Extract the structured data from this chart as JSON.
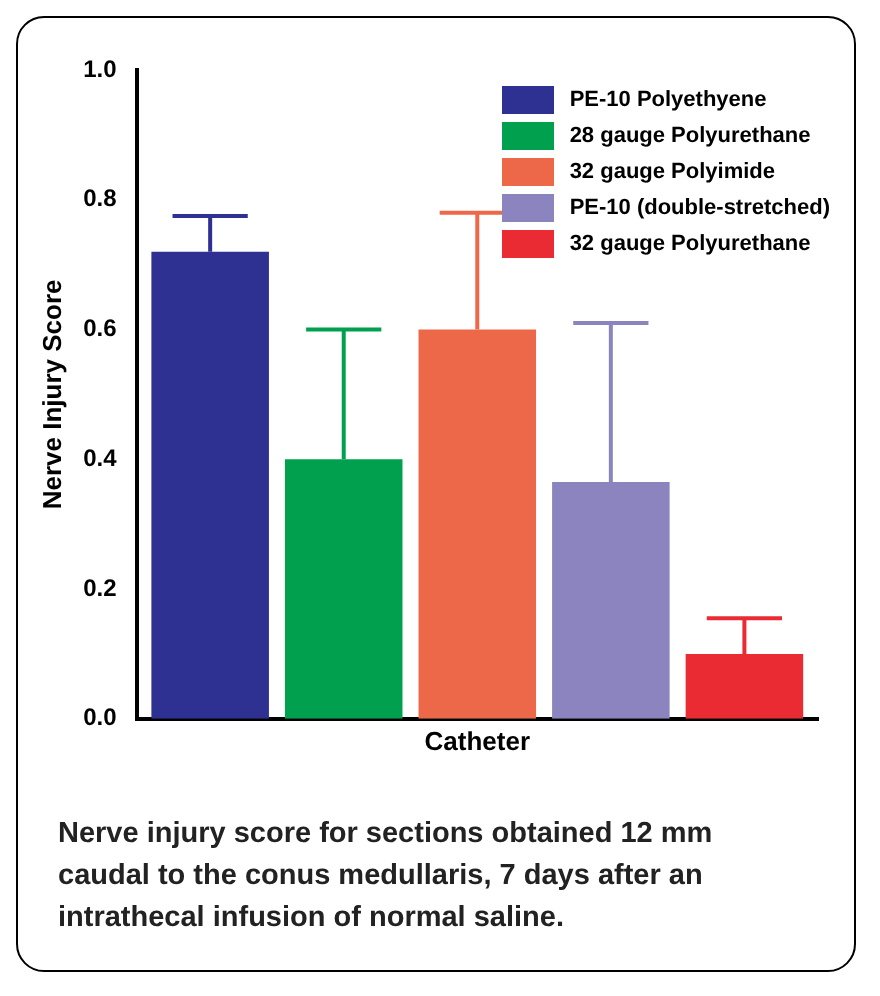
{
  "chart_data": {
    "type": "bar",
    "ylabel": "Nerve Injury Score",
    "xlabel": "Catheter",
    "categories": [
      null
    ],
    "series": [
      {
        "name": "PE-10 Polyethyene",
        "color": "#2e3191",
        "values": [
          0.72
        ],
        "errors": [
          [
            0.72,
            0.775
          ]
        ]
      },
      {
        "name": "28 gauge Polyurethane",
        "color": "#00a04f",
        "values": [
          0.4
        ],
        "errors": [
          [
            0.4,
            0.6
          ]
        ]
      },
      {
        "name": "32 gauge Polyimide",
        "color": "#ec6849",
        "values": [
          0.6
        ],
        "errors": [
          [
            0.6,
            0.78
          ]
        ]
      },
      {
        "name": "PE-10 (double-stretched)",
        "color": "#8b84bf",
        "values": [
          0.365
        ],
        "errors": [
          [
            0.365,
            0.61
          ]
        ]
      },
      {
        "name": "32 gauge Polyurethane",
        "color": "#ea2b34",
        "values": [
          0.1
        ],
        "errors": [
          [
            0.1,
            0.155
          ]
        ]
      }
    ],
    "ylim": [
      0,
      1
    ],
    "yticks": [
      {
        "value": 0,
        "label": "0.0"
      },
      {
        "value": 0.2,
        "label": "0.2"
      },
      {
        "value": 0.4,
        "label": "0.4"
      },
      {
        "value": 0.6,
        "label": "0.6"
      },
      {
        "value": 0.8,
        "label": "0.8"
      },
      {
        "value": 1,
        "label": "1.0"
      }
    ],
    "grid": false,
    "legend": "top right",
    "annotations": [
      "Nerve injury score for sections obtained 12 mm caudal to the conus medullaris, 7 days after an intrathecal infusion of normal saline."
    ]
  }
}
